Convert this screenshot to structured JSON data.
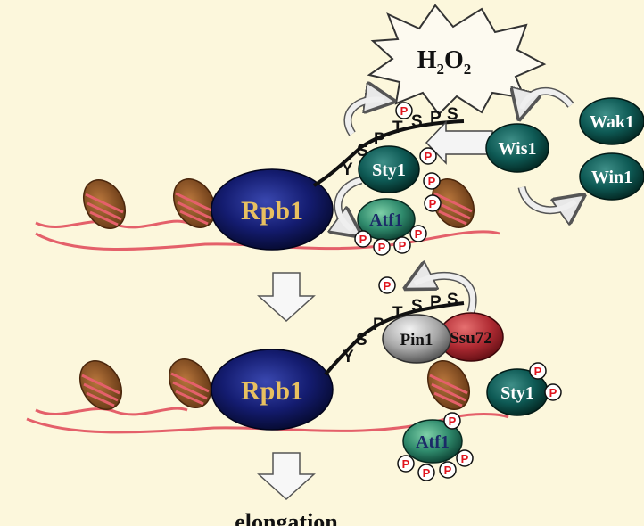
{
  "stimulus": {
    "h2o2_main": "H",
    "sub1": "2",
    "o_main": "O",
    "sub2": "2"
  },
  "proteins": {
    "rpb1_top": "Rpb1",
    "rpb1_bottom": "Rpb1",
    "sty1": "Sty1",
    "sty1_free": "Sty1",
    "atf1": "Atf1",
    "atf1_free": "Atf1",
    "wis1": "Wis1",
    "wak1": "Wak1",
    "win1": "Win1",
    "pin1": "Pin1",
    "ssu72": "Ssu72"
  },
  "ctd_sequence": [
    "Y",
    "S",
    "P",
    "T",
    "S",
    "P",
    "S"
  ],
  "phospho_label": "P",
  "outcome": "elongation",
  "colors": {
    "background": "#fcf7dc",
    "dna": "#e4606a",
    "nucleosome": "#8a5024",
    "rpb1": "#101a6c",
    "teal": "#0e5a55",
    "atf1": "#3c8c72",
    "phospho": "#e0141e",
    "ssu72": "#b02b33",
    "pin1": "#9a9a9a"
  }
}
